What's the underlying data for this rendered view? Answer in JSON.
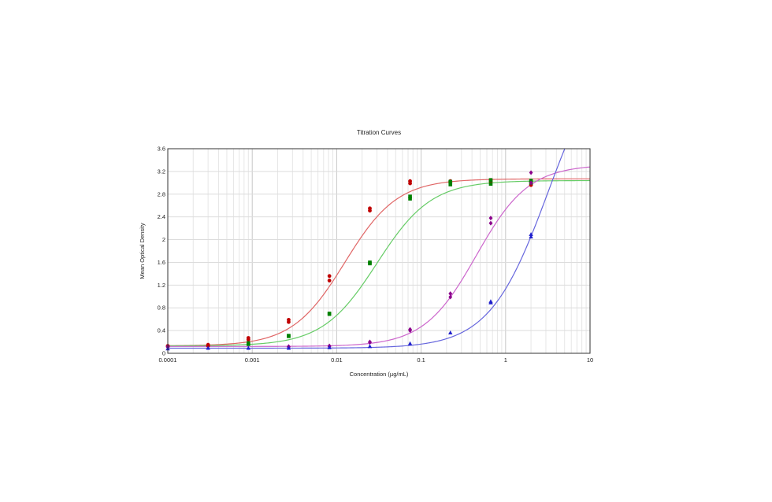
{
  "chart_data": {
    "type": "scatter",
    "title": "Titration Curves",
    "xlabel": "Concentration (µg/mL)",
    "ylabel": "Mean Optical Density",
    "xscale": "log",
    "xlim": [
      0.0001,
      10
    ],
    "ylim": [
      0,
      3.6
    ],
    "xticks": [
      {
        "value": 0.0001,
        "label": "0.0001"
      },
      {
        "value": 0.001,
        "label": "0.001"
      },
      {
        "value": 0.01,
        "label": "0.01"
      },
      {
        "value": 0.1,
        "label": "0.1"
      },
      {
        "value": 1,
        "label": "1"
      },
      {
        "value": 10,
        "label": "10"
      }
    ],
    "yticks": [
      {
        "value": 0,
        "label": "0"
      },
      {
        "value": 0.4,
        "label": "0.4"
      },
      {
        "value": 0.8,
        "label": "0.8"
      },
      {
        "value": 1.2,
        "label": "1.2"
      },
      {
        "value": 1.6,
        "label": "1.6"
      },
      {
        "value": 2,
        "label": "2"
      },
      {
        "value": 2.4,
        "label": "2.4"
      },
      {
        "value": 2.8,
        "label": "2.8"
      },
      {
        "value": 3.2,
        "label": "3.2"
      },
      {
        "value": 3.6,
        "label": "3.6"
      }
    ],
    "grid": true,
    "series": [
      {
        "color": "#c00000",
        "curve_color": "#e06666",
        "marker": "circle",
        "fit": {
          "bottom": 0.13,
          "top": 3.07,
          "ec50": 0.0125,
          "hill": 1.4
        },
        "points": [
          [
            0.0001,
            0.13
          ],
          [
            0.0001,
            0.12
          ],
          [
            0.0003,
            0.15
          ],
          [
            0.0003,
            0.13
          ],
          [
            0.0009,
            0.27
          ],
          [
            0.0009,
            0.24
          ],
          [
            0.0027,
            0.59
          ],
          [
            0.0027,
            0.55
          ],
          [
            0.0082,
            1.36
          ],
          [
            0.0082,
            1.28
          ],
          [
            0.0247,
            2.55
          ],
          [
            0.0247,
            2.51
          ],
          [
            0.074,
            3.03
          ],
          [
            0.074,
            2.99
          ],
          [
            0.222,
            3.03
          ],
          [
            0.222,
            3.0
          ],
          [
            0.667,
            3.05
          ],
          [
            0.667,
            3.02
          ],
          [
            2.0,
            3.02
          ],
          [
            2.0,
            2.96
          ]
        ]
      },
      {
        "color": "#008000",
        "curve_color": "#66cc66",
        "marker": "square",
        "fit": {
          "bottom": 0.13,
          "top": 3.04,
          "ec50": 0.03,
          "hill": 1.35
        },
        "points": [
          [
            0.0009,
            0.18
          ],
          [
            0.0009,
            0.16
          ],
          [
            0.0027,
            0.31
          ],
          [
            0.0027,
            0.3
          ],
          [
            0.0082,
            0.7
          ],
          [
            0.0082,
            0.69
          ],
          [
            0.0247,
            1.6
          ],
          [
            0.0247,
            1.58
          ],
          [
            0.074,
            2.76
          ],
          [
            0.074,
            2.72
          ],
          [
            0.222,
            3.02
          ],
          [
            0.222,
            2.97
          ],
          [
            0.667,
            3.05
          ],
          [
            0.667,
            2.98
          ],
          [
            2.0,
            3.04
          ],
          [
            2.0,
            3.0
          ]
        ]
      },
      {
        "color": "#8b008b",
        "curve_color": "#cc66cc",
        "marker": "diamond",
        "fit": {
          "bottom": 0.12,
          "top": 3.32,
          "ec50": 0.45,
          "hill": 1.4
        },
        "points": [
          [
            0.0001,
            0.12
          ],
          [
            0.0001,
            0.11
          ],
          [
            0.0027,
            0.12
          ],
          [
            0.0027,
            0.11
          ],
          [
            0.0082,
            0.13
          ],
          [
            0.0082,
            0.12
          ],
          [
            0.0247,
            0.2
          ],
          [
            0.0247,
            0.19
          ],
          [
            0.074,
            0.42
          ],
          [
            0.074,
            0.4
          ],
          [
            0.222,
            1.05
          ],
          [
            0.222,
            0.99
          ],
          [
            0.667,
            2.38
          ],
          [
            0.667,
            2.29
          ],
          [
            2.0,
            3.18
          ],
          [
            2.0,
            3.0
          ]
        ]
      },
      {
        "color": "#1f1fcc",
        "curve_color": "#6666dd",
        "marker": "triangle",
        "fit": {
          "bottom": 0.09,
          "top": 5.6,
          "ec50": 3.2,
          "hill": 1.25
        },
        "points": [
          [
            0.0001,
            0.08
          ],
          [
            0.0003,
            0.09
          ],
          [
            0.0009,
            0.09
          ],
          [
            0.0027,
            0.09
          ],
          [
            0.0082,
            0.1
          ],
          [
            0.0247,
            0.12
          ],
          [
            0.074,
            0.17
          ],
          [
            0.222,
            0.36
          ],
          [
            0.667,
            0.91
          ],
          [
            0.667,
            0.89
          ],
          [
            2.0,
            2.09
          ],
          [
            2.0,
            2.05
          ]
        ]
      }
    ]
  }
}
